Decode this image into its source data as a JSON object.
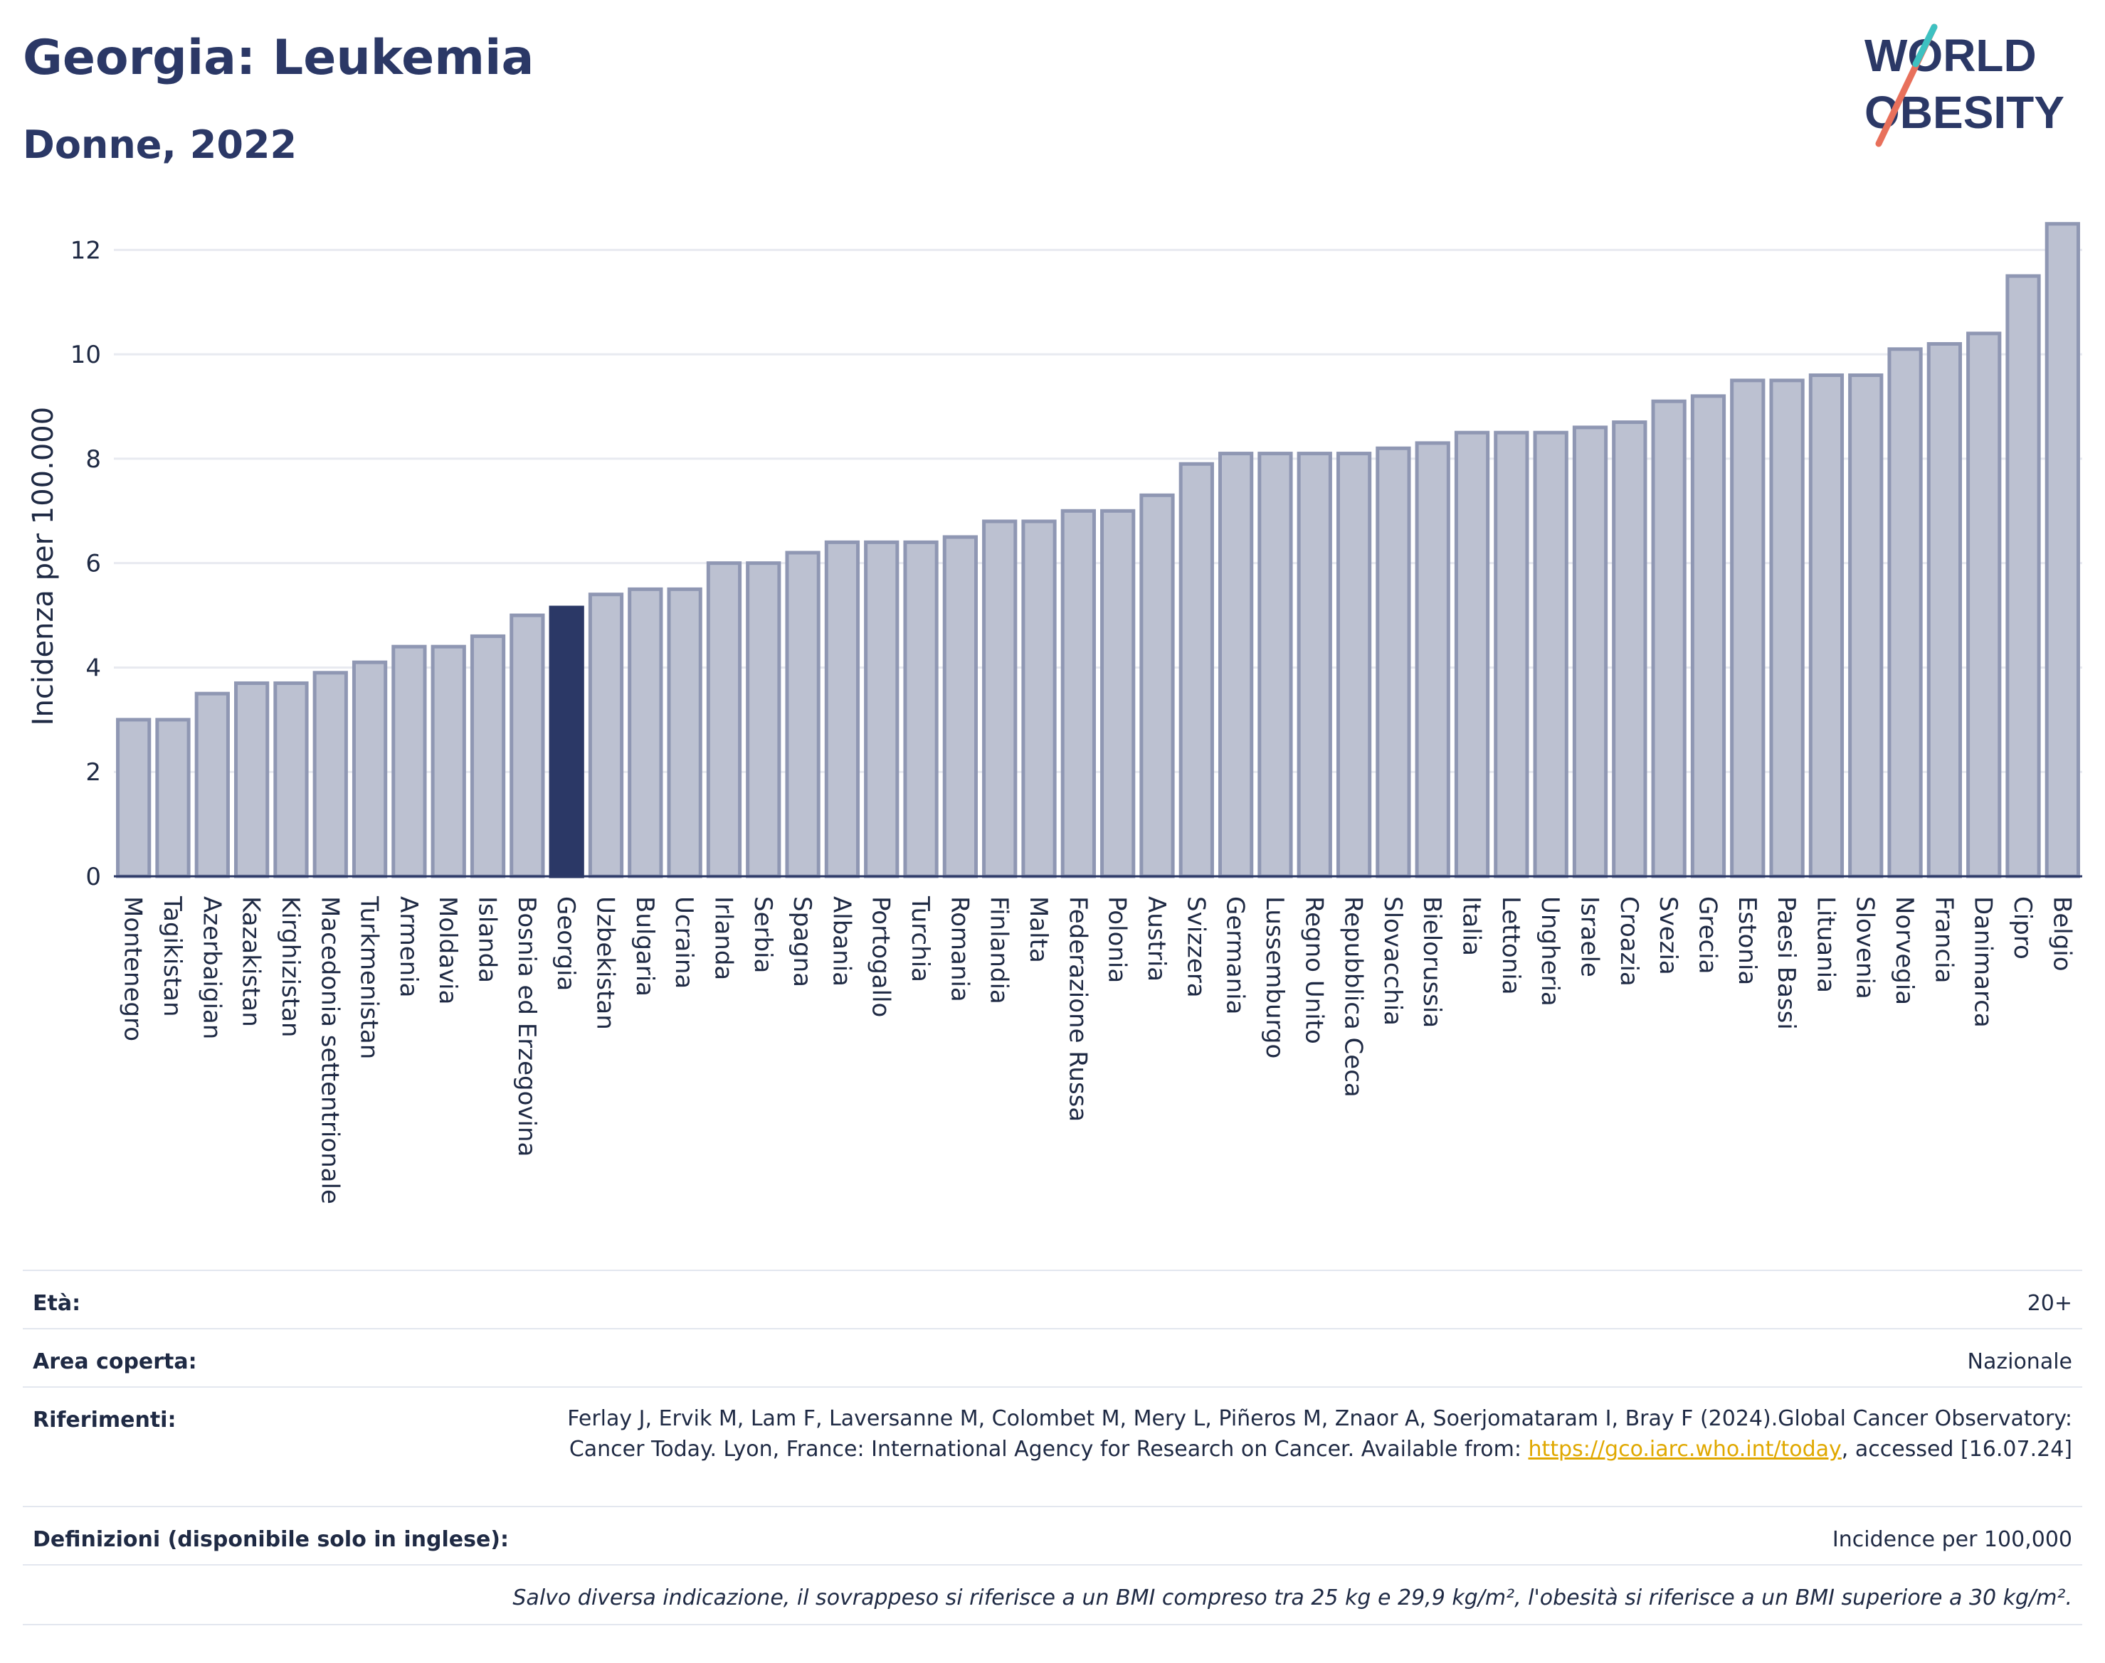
{
  "header": {
    "title": "Georgia: Leukemia",
    "subtitle": "Donne, 2022"
  },
  "logo": {
    "line1": "WORLD",
    "line2": "OBESITY"
  },
  "chart_data": {
    "type": "bar",
    "ylabel": "Incidenza per 100.000",
    "xlabel": "",
    "ylim": [
      0,
      12.7
    ],
    "yticks": [
      0,
      2,
      4,
      6,
      8,
      10,
      12
    ],
    "grid": true,
    "highlight": "Georgia",
    "colors": {
      "bar": "#bcc1d1",
      "bar_edge": "#8f97b3",
      "highlight": "#2b3866"
    },
    "categories": [
      "Montenegro",
      "Tagikistan",
      "Azerbaigian",
      "Kazakistan",
      "Kirghizistan",
      "Macedonia settentrionale",
      "Turkmenistan",
      "Armenia",
      "Moldavia",
      "Islanda",
      "Bosnia ed Erzegovina",
      "Georgia",
      "Uzbekistan",
      "Bulgaria",
      "Ucraina",
      "Irlanda",
      "Serbia",
      "Spagna",
      "Albania",
      "Portogallo",
      "Turchia",
      "Romania",
      "Finlandia",
      "Malta",
      "Federazione Russa",
      "Polonia",
      "Austria",
      "Svizzera",
      "Germania",
      "Lussemburgo",
      "Regno Unito",
      "Repubblica Ceca",
      "Slovacchia",
      "Bielorussia",
      "Italia",
      "Lettonia",
      "Ungheria",
      "Israele",
      "Croazia",
      "Svezia",
      "Grecia",
      "Estonia",
      "Paesi Bassi",
      "Lituania",
      "Slovenia",
      "Norvegia",
      "Francia",
      "Danimarca",
      "Cipro",
      "Belgio"
    ],
    "values": [
      3.0,
      3.0,
      3.5,
      3.7,
      3.7,
      3.9,
      4.1,
      4.4,
      4.4,
      4.6,
      5.0,
      5.15,
      5.4,
      5.5,
      5.5,
      6.0,
      6.0,
      6.2,
      6.4,
      6.4,
      6.4,
      6.5,
      6.8,
      6.8,
      7.0,
      7.0,
      7.3,
      7.9,
      8.1,
      8.1,
      8.1,
      8.1,
      8.2,
      8.3,
      8.5,
      8.5,
      8.5,
      8.6,
      8.7,
      9.1,
      9.2,
      9.5,
      9.5,
      9.6,
      9.6,
      10.1,
      10.2,
      10.4,
      11.5,
      12.5
    ]
  },
  "info": {
    "age_label": "Età:",
    "age_value": "20+",
    "area_label": "Area coperta:",
    "area_value": "Nazionale",
    "refs_label": "Riferimenti:",
    "refs_text_1": "Ferlay J, Ervik M, Lam F, Laversanne M, Colombet M, Mery L, Piñeros M, Znaor A, Soerjomataram I, Bray F (2024).Global Cancer Observatory: Cancer Today. Lyon, France: International Agency for Research on Cancer. Available from: ",
    "refs_link": "https://gco.iarc.who.int/today",
    "refs_text_2": ", accessed [16.07.24]",
    "defs_label": "Definizioni (disponibile solo in inglese):",
    "defs_value": "Incidence per 100,000",
    "note": "Salvo diversa indicazione, il sovrappeso si riferisce a un BMI compreso tra 25 kg e 29,9 kg/m², l'obesità si riferisce a un BMI superiore a 30 kg/m²."
  }
}
